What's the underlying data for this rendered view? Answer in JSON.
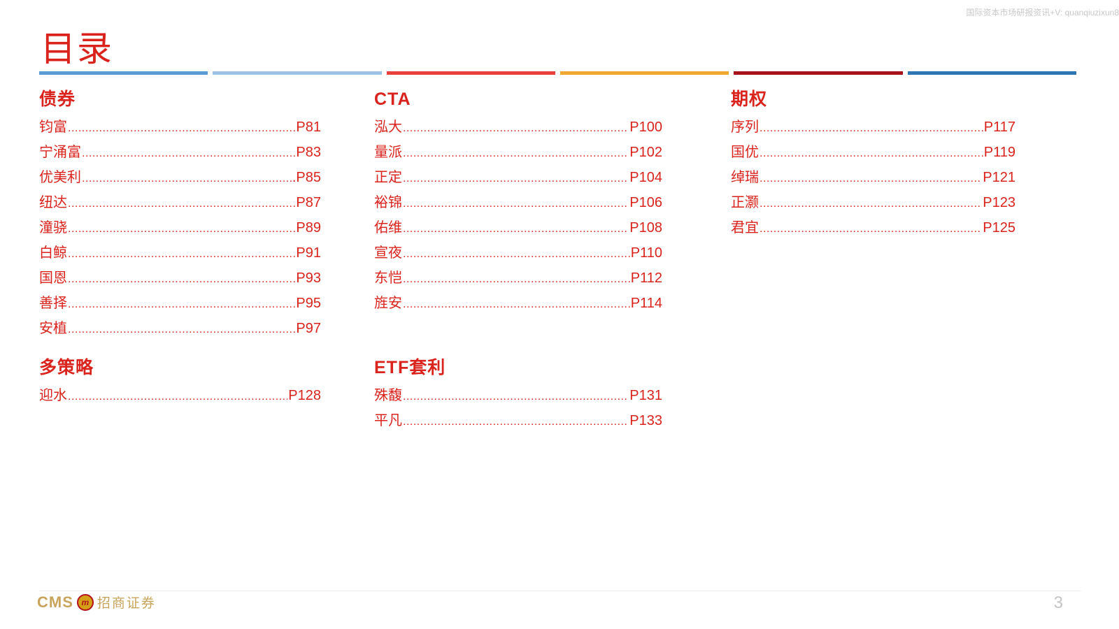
{
  "watermark": "国际资本市场研报资讯+V: quanqiuzixun8",
  "title": "目录",
  "divider_colors": [
    "#5b9bd5",
    "#9dc3e6",
    "#e8403a",
    "#f0a830",
    "#a6141a",
    "#2e75b6"
  ],
  "columns": [
    {
      "sections": [
        {
          "title": "债券",
          "items": [
            {
              "name": "钧富 ",
              "page": "P81"
            },
            {
              "name": "宁涌富  ",
              "page": " P83"
            },
            {
              "name": "优美利",
              "page": ".P85"
            },
            {
              "name": "纽达 ",
              "page": "P87"
            },
            {
              "name": "潼骁      ",
              "page": "P89"
            },
            {
              "name": "白鲸",
              "page": "P91"
            },
            {
              "name": "国恩 ",
              "page": "P93"
            },
            {
              "name": "善择 ",
              "page": "P95"
            },
            {
              "name": "安植 ",
              "page": "P97"
            }
          ]
        },
        {
          "title": "多策略",
          "items": [
            {
              "name": "迎水 ",
              "page": "P128"
            }
          ]
        }
      ]
    },
    {
      "sections": [
        {
          "title": "CTA",
          "items": [
            {
              "name": "泓大 ",
              "page": "P100"
            },
            {
              "name": "量派",
              "page": "P102"
            },
            {
              "name": "正定",
              "page": "P104"
            },
            {
              "name": "裕锦 ",
              "page": "P106"
            },
            {
              "name": "佑维 ",
              "page": "P108"
            },
            {
              "name": "宣夜 ",
              "page": "P110"
            },
            {
              "name": "东恺 ",
              "page": "P112"
            },
            {
              "name": "旌安 ",
              "page": "P114"
            }
          ]
        },
        {
          "title": "ETF套利",
          "items": [
            {
              "name": " 殊馥",
              "page": "P131"
            },
            {
              "name": "平凡 ",
              "page": "P133"
            }
          ]
        }
      ]
    },
    {
      "sections": [
        {
          "title": "期权",
          "items": [
            {
              "name": "序列 ",
              "page": "P117"
            },
            {
              "name": "国优",
              "page": "P119"
            },
            {
              "name": "绰瑞 ",
              "page": "P121"
            },
            {
              "name": "正灏",
              "page": "P123"
            },
            {
              "name": "君宜 ",
              "page": "P125"
            }
          ]
        }
      ]
    }
  ],
  "footer": {
    "logo_text": "CMS",
    "logo_cn": "招商证券",
    "page_number": "3"
  }
}
